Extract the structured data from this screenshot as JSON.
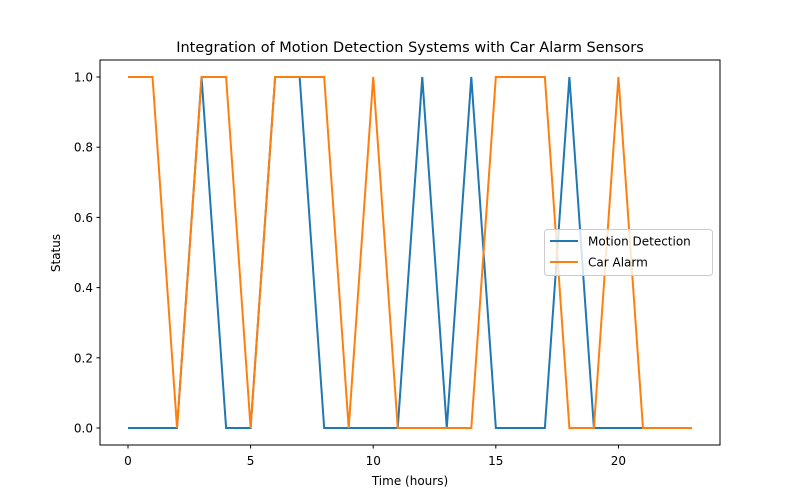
{
  "chart_data": {
    "type": "line",
    "title": "Integration of Motion Detection Systems with Car Alarm Sensors",
    "xlabel": "Time (hours)",
    "ylabel": "Status",
    "x": [
      0,
      1,
      2,
      3,
      4,
      5,
      6,
      7,
      8,
      9,
      10,
      11,
      12,
      13,
      14,
      15,
      16,
      17,
      18,
      19,
      20,
      21,
      22,
      23
    ],
    "series": [
      {
        "name": "Motion Detection",
        "color": "#1f77b4",
        "values": [
          0,
          0,
          0,
          1,
          0,
          0,
          1,
          1,
          0,
          0,
          0,
          0,
          1,
          0,
          1,
          0,
          0,
          0,
          1,
          0,
          0,
          0,
          0,
          0
        ]
      },
      {
        "name": "Car Alarm",
        "color": "#ff7f0e",
        "values": [
          1,
          1,
          0,
          1,
          1,
          0,
          1,
          1,
          1,
          0,
          1,
          0,
          0,
          0,
          0,
          1,
          1,
          1,
          0,
          0,
          1,
          0,
          0,
          0
        ]
      }
    ],
    "xlim": [
      -1.15,
      24.15
    ],
    "ylim": [
      -0.05,
      1.05
    ],
    "xticks": [
      0,
      5,
      10,
      15,
      20
    ],
    "xtick_labels": [
      "0",
      "5",
      "10",
      "15",
      "20"
    ],
    "yticks": [
      0.0,
      0.2,
      0.4,
      0.6,
      0.8,
      1.0
    ],
    "ytick_labels": [
      "0.0",
      "0.2",
      "0.4",
      "0.6",
      "0.8",
      "1.0"
    ],
    "grid": false,
    "legend_position": "center right"
  }
}
